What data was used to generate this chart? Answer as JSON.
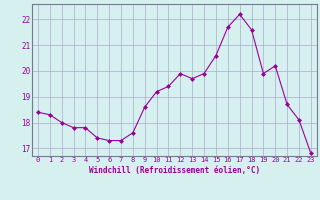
{
  "x": [
    0,
    1,
    2,
    3,
    4,
    5,
    6,
    7,
    8,
    9,
    10,
    11,
    12,
    13,
    14,
    15,
    16,
    17,
    18,
    19,
    20,
    21,
    22,
    23
  ],
  "y": [
    18.4,
    18.3,
    18.0,
    17.8,
    17.8,
    17.4,
    17.3,
    17.3,
    17.6,
    18.6,
    19.2,
    19.4,
    19.9,
    19.7,
    19.9,
    20.6,
    21.7,
    22.2,
    21.6,
    19.9,
    20.2,
    18.7,
    18.1,
    16.8
  ],
  "line_color": "#990099",
  "marker": "D",
  "marker_size": 2,
  "bg_color": "#d5f0ee",
  "grid_color": "#aaaacc",
  "xlabel": "Windchill (Refroidissement éolien,°C)",
  "xlabel_color": "#990099",
  "tick_color": "#990099",
  "ylim": [
    16.7,
    22.6
  ],
  "yticks": [
    17,
    18,
    19,
    20,
    21,
    22
  ],
  "xticks": [
    0,
    1,
    2,
    3,
    4,
    5,
    6,
    7,
    8,
    9,
    10,
    11,
    12,
    13,
    14,
    15,
    16,
    17,
    18,
    19,
    20,
    21,
    22,
    23
  ],
  "xlim": [
    -0.5,
    23.5
  ],
  "spine_color": "#777799",
  "tick_fontsize": 5.0,
  "xlabel_fontsize": 5.5
}
